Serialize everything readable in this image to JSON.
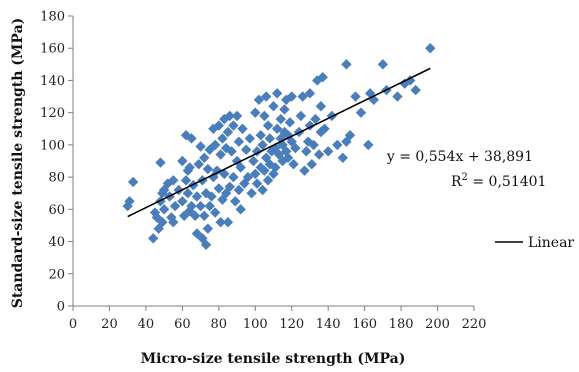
{
  "chart_data": {
    "type": "scatter",
    "title": "",
    "xlabel": "Micro-size tensile strength (MPa)",
    "ylabel": "Standard-size tensile strength (MPa)",
    "xlim": [
      0,
      220
    ],
    "ylim": [
      0,
      180
    ],
    "x_ticks": [
      0,
      20,
      40,
      60,
      80,
      100,
      120,
      140,
      160,
      180,
      200,
      220
    ],
    "y_ticks": [
      0,
      20,
      40,
      60,
      80,
      100,
      120,
      140,
      160,
      180
    ],
    "grid": false,
    "marker_color": "#4a7ebb",
    "line_color": "#000000",
    "series": [
      {
        "x": [
          30,
          31,
          33,
          44,
          45,
          46,
          47,
          48,
          48,
          49,
          49,
          50,
          50,
          52,
          53,
          54,
          55,
          55,
          56,
          58,
          60,
          60,
          61,
          62,
          62,
          63,
          63,
          64,
          64,
          65,
          65,
          66,
          67,
          68,
          68,
          69,
          70,
          70,
          71,
          71,
          72,
          72,
          73,
          73,
          74,
          74,
          75,
          75,
          76,
          77,
          77,
          78,
          78,
          79,
          80,
          80,
          81,
          81,
          82,
          82,
          83,
          83,
          84,
          84,
          85,
          85,
          86,
          86,
          87,
          88,
          88,
          89,
          90,
          90,
          91,
          91,
          92,
          92,
          93,
          94,
          95,
          96,
          97,
          98,
          99,
          100,
          100,
          101,
          101,
          102,
          103,
          103,
          104,
          104,
          105,
          105,
          106,
          106,
          107,
          107,
          108,
          108,
          109,
          110,
          110,
          111,
          111,
          112,
          112,
          113,
          114,
          114,
          115,
          115,
          116,
          116,
          117,
          117,
          118,
          118,
          119,
          120,
          120,
          121,
          122,
          124,
          125,
          126,
          127,
          128,
          129,
          130,
          130,
          131,
          132,
          133,
          134,
          135,
          136,
          136,
          137,
          138,
          140,
          142,
          145,
          148,
          150,
          150,
          152,
          155,
          158,
          162,
          163,
          165,
          170,
          172,
          178,
          182,
          185,
          188,
          196
        ],
        "y": [
          62,
          65,
          77,
          42,
          58,
          55,
          48,
          65,
          89,
          52,
          70,
          60,
          72,
          76,
          68,
          55,
          78,
          52,
          62,
          72,
          90,
          65,
          56,
          78,
          106,
          70,
          84,
          59,
          86,
          62,
          104,
          75,
          56,
          45,
          68,
          88,
          62,
          99,
          42,
          78,
          56,
          92,
          38,
          70,
          48,
          85,
          62,
          97,
          68,
          80,
          110,
          58,
          100,
          84,
          73,
          112,
          52,
          94,
          66,
          104,
          82,
          116,
          70,
          98,
          52,
          108,
          74,
          118,
          96,
          80,
          112,
          65,
          90,
          118,
          72,
          102,
          60,
          86,
          110,
          76,
          97,
          80,
          104,
          70,
          90,
          82,
          120,
          76,
          96,
          128,
          86,
          106,
          72,
          100,
          84,
          118,
          92,
          130,
          78,
          112,
          88,
          104,
          96,
          82,
          124,
          98,
          86,
          110,
          132,
          94,
          104,
          116,
          100,
          90,
          122,
          108,
          96,
          128,
          106,
          92,
          114,
          102,
          130,
          88,
          98,
          108,
          118,
          130,
          84,
          96,
          102,
          112,
          132,
          88,
          100,
          116,
          140,
          94,
          108,
          124,
          142,
          110,
          96,
          118,
          100,
          92,
          102,
          150,
          106,
          130,
          120,
          100,
          132,
          128,
          150,
          134,
          130,
          138,
          140,
          134,
          160
        ]
      }
    ],
    "trendline": {
      "type": "linear",
      "slope": 0.554,
      "intercept": 38.891,
      "x_range": [
        30,
        196
      ],
      "equation_text": "y = 0,554x + 38,891",
      "r2_prefix": "R",
      "r2_sup": "2",
      "r2_value": " = 0,51401",
      "legend_label": "Linear"
    }
  }
}
